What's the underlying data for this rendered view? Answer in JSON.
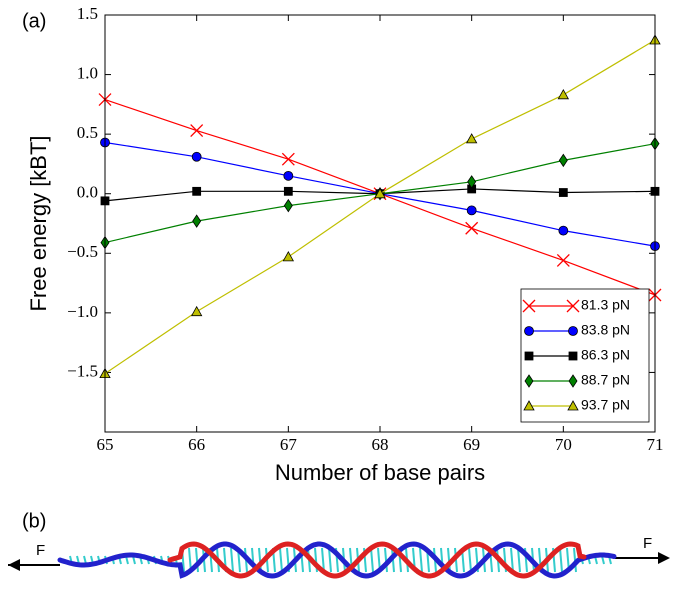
{
  "panel_labels": [
    "(a)",
    "(b)"
  ],
  "force_labels": [
    "F",
    "F"
  ],
  "chart_data": {
    "type": "line",
    "x_label": "Number of base pairs",
    "y_label": "Free energy [kBT]",
    "x": [
      65,
      66,
      67,
      68,
      69,
      70,
      71
    ],
    "xlim": [
      65,
      71
    ],
    "xticks": [
      65,
      66,
      67,
      68,
      69,
      70,
      71
    ],
    "ylim": [
      -2,
      1.5
    ],
    "yticks": [
      {
        "value": -1.5,
        "label": "−1.5"
      },
      {
        "value": -1,
        "label": "−1.0"
      },
      {
        "value": -0.5,
        "label": "−0.5"
      },
      {
        "value": 0,
        "label": "0.0"
      },
      0.5,
      {
        "value": 1,
        "label": "1.0"
      },
      1.5
    ],
    "legend": "lower right",
    "series": [
      {
        "name": "81.3 pN",
        "color": "#ff0000",
        "marker": "x",
        "values": [
          0.79,
          0.53,
          0.29,
          0,
          -0.29,
          -0.56,
          -0.85
        ]
      },
      {
        "name": "83.8 pN",
        "color": "#0000ff",
        "marker": "circle",
        "values": [
          0.43,
          0.31,
          0.15,
          0,
          -0.14,
          -0.31,
          -0.44
        ]
      },
      {
        "name": "86.3 pN",
        "color": "#000000",
        "marker": "square",
        "values": [
          -0.06,
          0.02,
          0.02,
          0,
          0.04,
          0.01,
          0.02
        ]
      },
      {
        "name": "88.7 pN",
        "color": "#008000",
        "marker": "diamond",
        "values": [
          -0.41,
          -0.23,
          -0.1,
          0,
          0.1,
          0.28,
          0.42
        ]
      },
      {
        "name": "93.7 pN",
        "color": "#bfbf00",
        "marker": "triangle",
        "values": [
          -1.51,
          -0.99,
          -0.53,
          0,
          0.46,
          0.83,
          1.29
        ]
      }
    ]
  }
}
